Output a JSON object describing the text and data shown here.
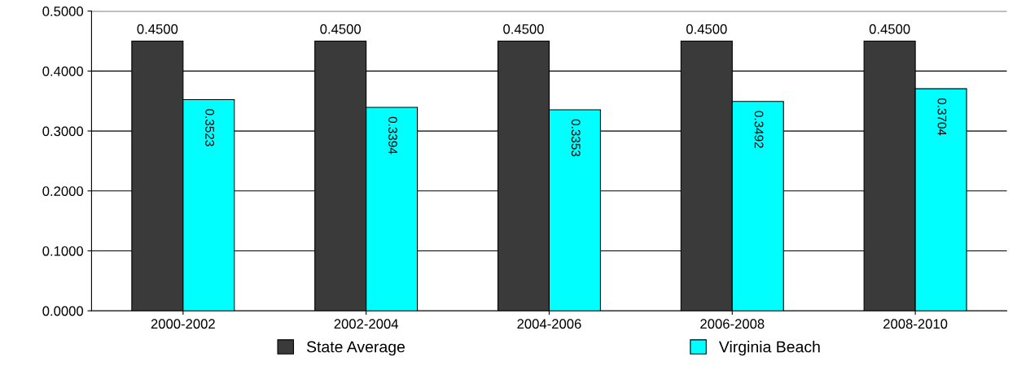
{
  "chart_data": {
    "type": "bar",
    "categories": [
      "2000-2002",
      "2002-2004",
      "2004-2006",
      "2006-2008",
      "2008-2010"
    ],
    "series": [
      {
        "name": "State Average",
        "color": "#3a3a3a",
        "values": [
          0.45,
          0.45,
          0.45,
          0.45,
          0.45
        ],
        "value_labels": [
          "0.4500",
          "0.4500",
          "0.4500",
          "0.4500",
          "0.4500"
        ]
      },
      {
        "name": "Virginia Beach",
        "color": "#00ffff",
        "values": [
          0.3523,
          0.3394,
          0.3353,
          0.3492,
          0.3704
        ],
        "value_labels": [
          "0.3523",
          "0.3394",
          "0.3353",
          "0.3492",
          "0.3704"
        ]
      }
    ],
    "ylim": [
      0,
      0.5
    ],
    "yticks": [
      {
        "value": 0,
        "label": "0.0000"
      },
      {
        "value": 0.1,
        "label": "0.1000"
      },
      {
        "value": 0.2,
        "label": "0.2000"
      },
      {
        "value": 0.3,
        "label": "0.3000"
      },
      {
        "value": 0.4,
        "label": "0.4000"
      },
      {
        "value": 0.5,
        "label": "0.5000"
      }
    ],
    "grid": "y",
    "legend": "bottom"
  }
}
